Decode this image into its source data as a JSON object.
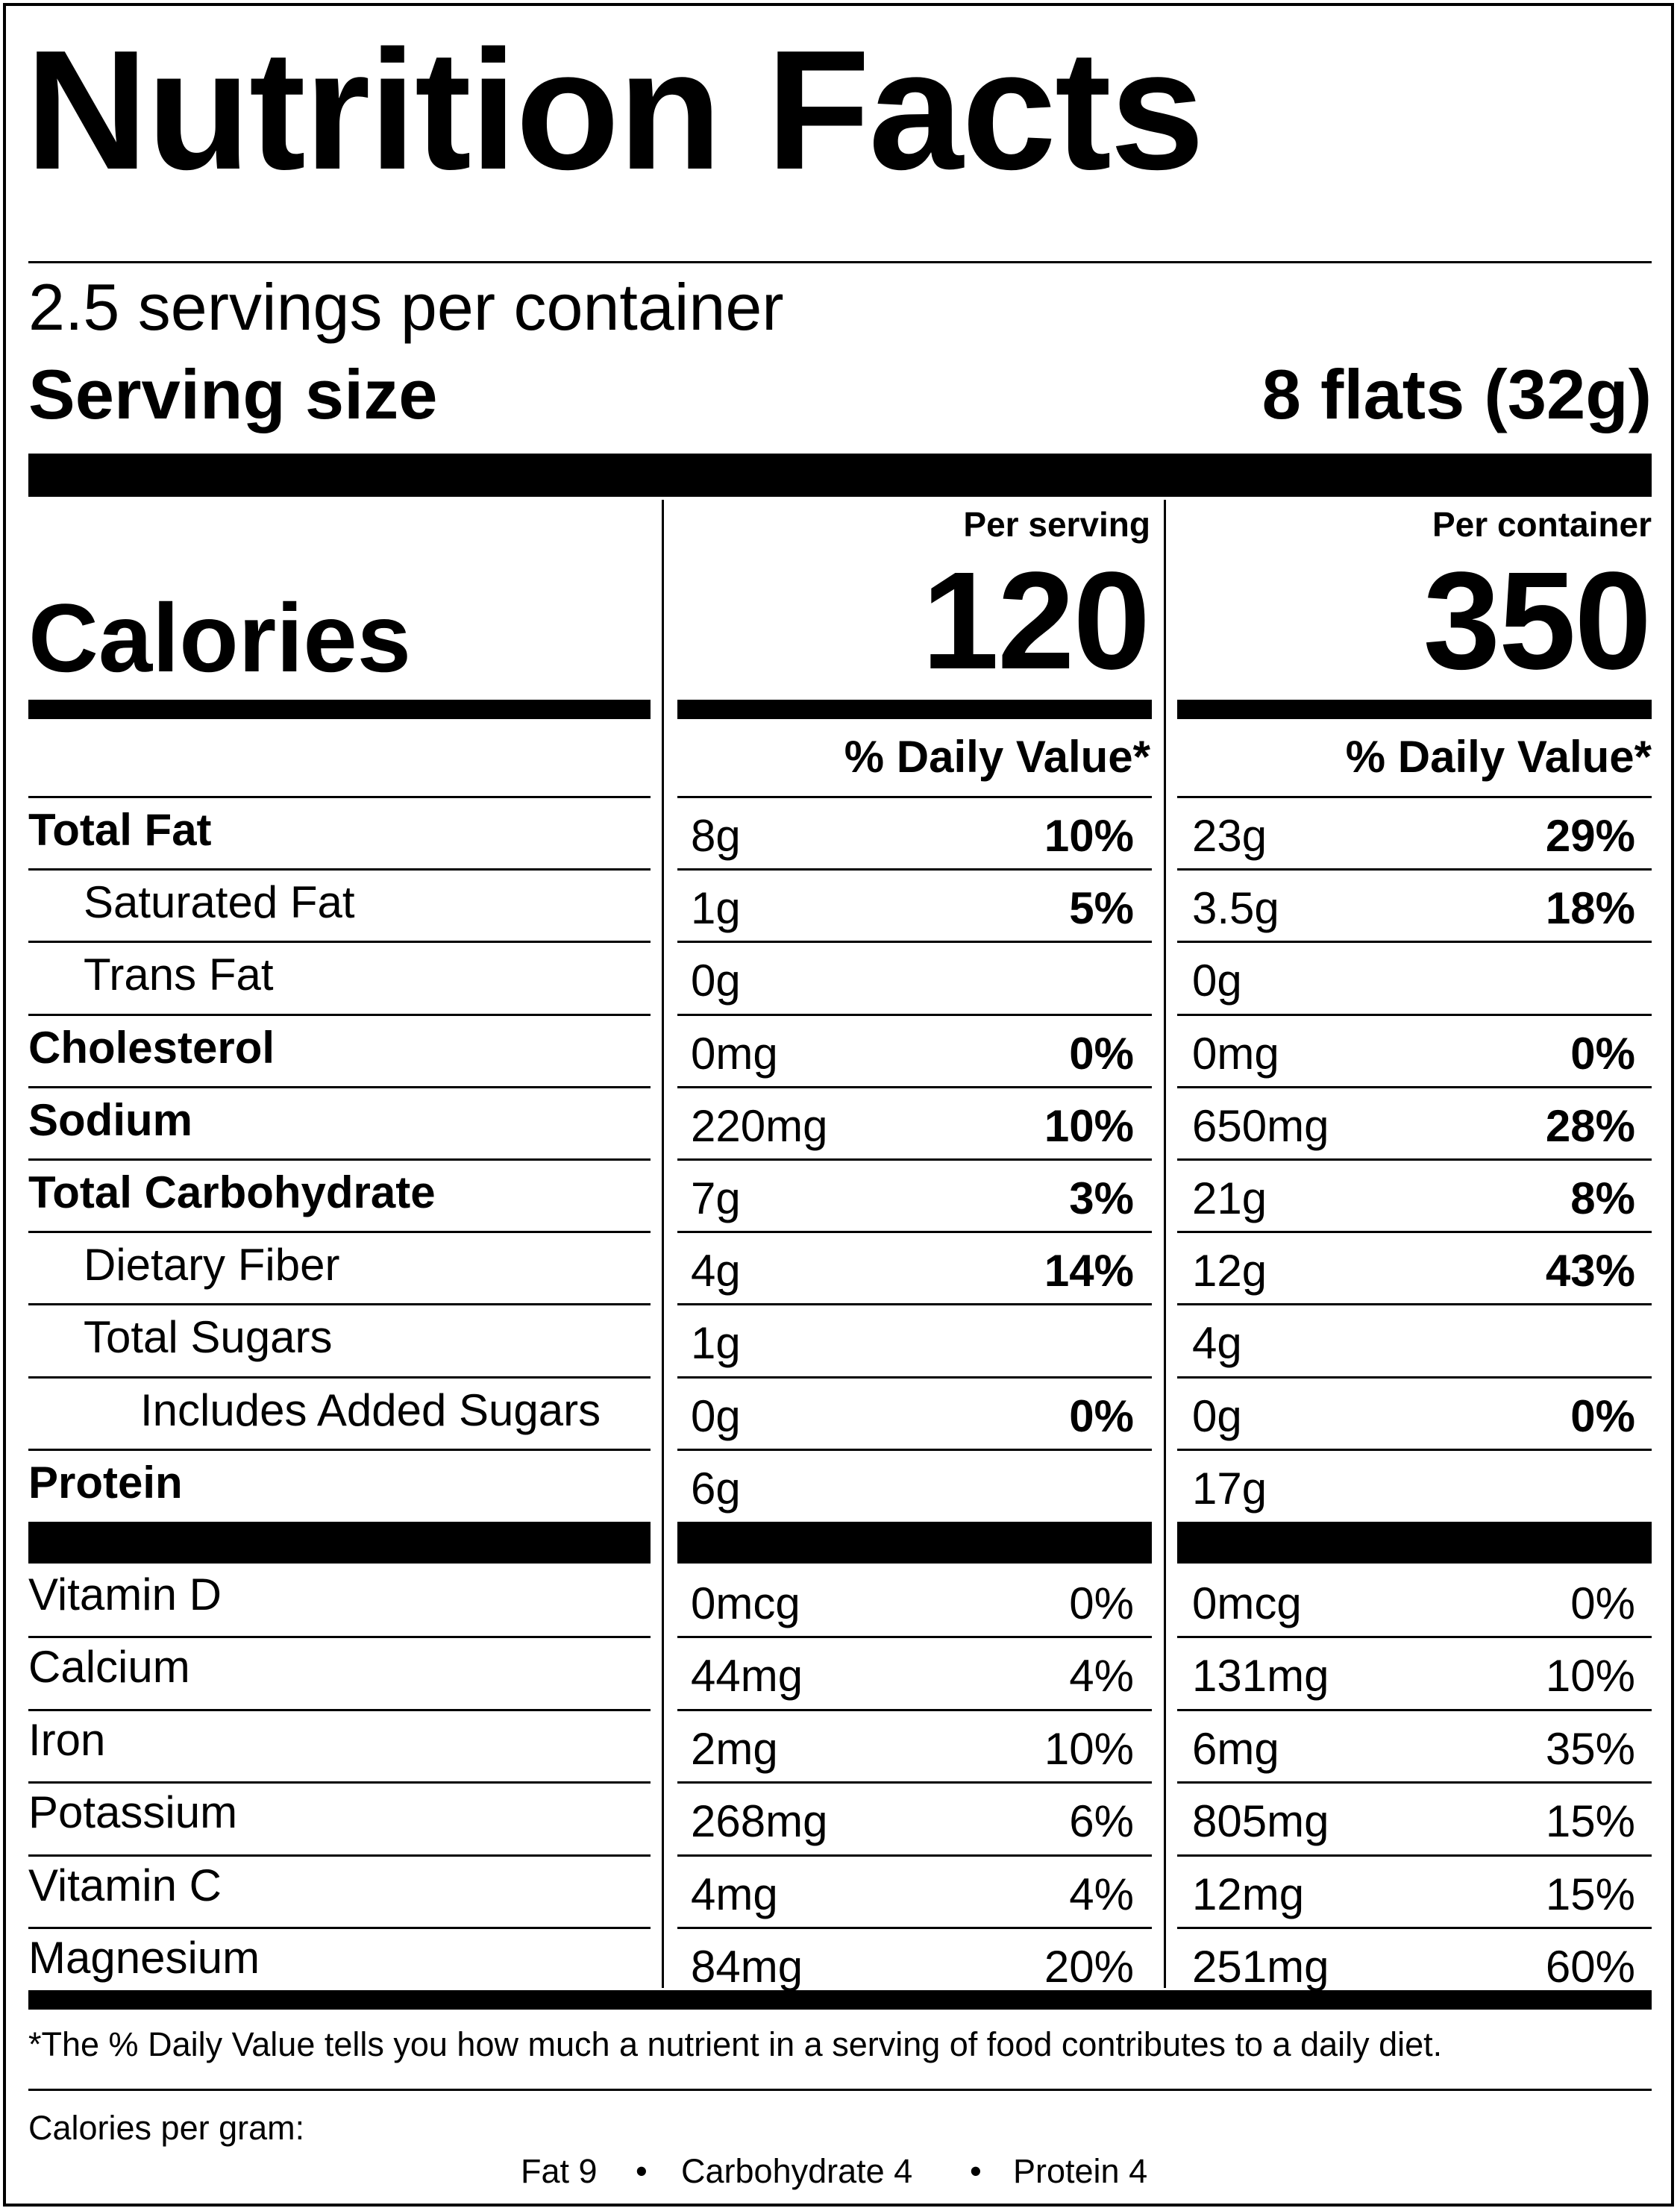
{
  "title": "Nutrition Facts",
  "servings_per_container": "2.5 servings per container",
  "serving_size_label": "Serving size",
  "serving_size_value": "8 flats (32g)",
  "calories_label": "Calories",
  "columns": [
    {
      "header": "Per serving",
      "calories": "120",
      "dv_header": "% Daily Value*"
    },
    {
      "header": "Per container",
      "calories": "350",
      "dv_header": "% Daily Value*"
    }
  ],
  "nutrients": [
    {
      "name": "Total Fat",
      "bold": true,
      "indent": 0,
      "serving": {
        "amount": "8g",
        "dv": "10%"
      },
      "container": {
        "amount": "23g",
        "dv": "29%"
      }
    },
    {
      "name": "Saturated Fat",
      "bold": false,
      "indent": 1,
      "serving": {
        "amount": "1g",
        "dv": "5%"
      },
      "container": {
        "amount": "3.5g",
        "dv": "18%"
      }
    },
    {
      "name": "Trans Fat",
      "bold": false,
      "indent": 1,
      "serving": {
        "amount": "0g",
        "dv": ""
      },
      "container": {
        "amount": "0g",
        "dv": ""
      }
    },
    {
      "name": "Cholesterol",
      "bold": true,
      "indent": 0,
      "serving": {
        "amount": "0mg",
        "dv": "0%"
      },
      "container": {
        "amount": "0mg",
        "dv": "0%"
      }
    },
    {
      "name": "Sodium",
      "bold": true,
      "indent": 0,
      "serving": {
        "amount": "220mg",
        "dv": "10%"
      },
      "container": {
        "amount": "650mg",
        "dv": "28%"
      }
    },
    {
      "name": "Total Carbohydrate",
      "bold": true,
      "indent": 0,
      "serving": {
        "amount": "7g",
        "dv": "3%"
      },
      "container": {
        "amount": "21g",
        "dv": "8%"
      }
    },
    {
      "name": "Dietary Fiber",
      "bold": false,
      "indent": 1,
      "serving": {
        "amount": "4g",
        "dv": "14%"
      },
      "container": {
        "amount": "12g",
        "dv": "43%"
      }
    },
    {
      "name": "Total Sugars",
      "bold": false,
      "indent": 1,
      "serving": {
        "amount": "1g",
        "dv": ""
      },
      "container": {
        "amount": "4g",
        "dv": ""
      }
    },
    {
      "name": "Includes Added Sugars",
      "bold": false,
      "indent": 2,
      "serving": {
        "amount": "0g",
        "dv": "0%"
      },
      "container": {
        "amount": "0g",
        "dv": "0%"
      }
    },
    {
      "name": "Protein",
      "bold": true,
      "indent": 0,
      "serving": {
        "amount": "6g",
        "dv": ""
      },
      "container": {
        "amount": "17g",
        "dv": ""
      }
    }
  ],
  "vitamins": [
    {
      "name": "Vitamin D",
      "serving": {
        "amount": "0mcg",
        "dv": "0%"
      },
      "container": {
        "amount": "0mcg",
        "dv": "0%"
      }
    },
    {
      "name": "Calcium",
      "serving": {
        "amount": "44mg",
        "dv": "4%"
      },
      "container": {
        "amount": "131mg",
        "dv": "10%"
      }
    },
    {
      "name": "Iron",
      "serving": {
        "amount": "2mg",
        "dv": "10%"
      },
      "container": {
        "amount": "6mg",
        "dv": "35%"
      }
    },
    {
      "name": "Potassium",
      "serving": {
        "amount": "268mg",
        "dv": "6%"
      },
      "container": {
        "amount": "805mg",
        "dv": "15%"
      }
    },
    {
      "name": "Vitamin C",
      "serving": {
        "amount": "4mg",
        "dv": "4%"
      },
      "container": {
        "amount": "12mg",
        "dv": "15%"
      }
    },
    {
      "name": "Magnesium",
      "serving": {
        "amount": "84mg",
        "dv": "20%"
      },
      "container": {
        "amount": "251mg",
        "dv": "60%"
      }
    }
  ],
  "footnote": "*The % Daily Value tells you how much a nutrient in a serving of food contributes to a daily diet.",
  "calories_per_gram_label": "Calories per gram:",
  "calories_per_gram": [
    "Fat 9",
    "Carbohydrate 4",
    "Protein 4"
  ],
  "separator": "•"
}
